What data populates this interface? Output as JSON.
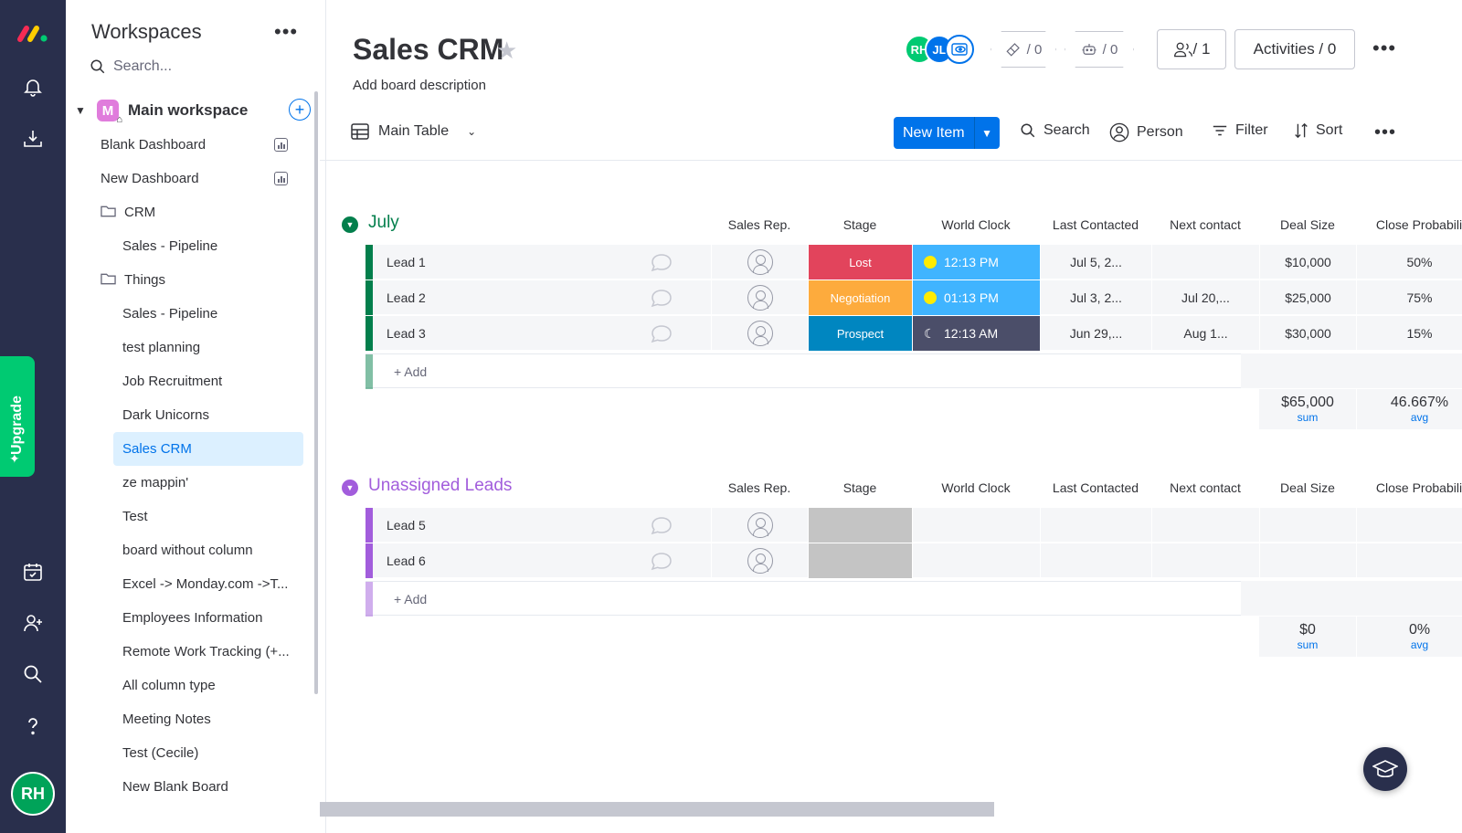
{
  "rail": {
    "upgrade_label": "Upgrade",
    "user_initials": "RH"
  },
  "sidebar": {
    "title": "Workspaces",
    "more": "•••",
    "search_placeholder": "Search...",
    "workspace": {
      "name": "Main workspace",
      "badge": "M"
    },
    "items": [
      {
        "label": "Blank Dashboard",
        "type": "dashboard"
      },
      {
        "label": "New Dashboard",
        "type": "dashboard"
      },
      {
        "label": "CRM",
        "type": "folder"
      },
      {
        "label": "Sales - Pipeline",
        "type": "board"
      },
      {
        "label": "Things",
        "type": "folder"
      },
      {
        "label": "Sales - Pipeline",
        "type": "board"
      },
      {
        "label": "test planning",
        "type": "board"
      },
      {
        "label": "Job Recruitment",
        "type": "board"
      },
      {
        "label": "Dark Unicorns",
        "type": "board"
      },
      {
        "label": "Sales CRM",
        "type": "board",
        "active": true
      },
      {
        "label": "ze mappin'",
        "type": "board"
      },
      {
        "label": "Test",
        "type": "board"
      },
      {
        "label": "board without column",
        "type": "board"
      },
      {
        "label": "Excel -> Monday.com ->T...",
        "type": "board"
      },
      {
        "label": "Employees Information",
        "type": "board"
      },
      {
        "label": "Remote Work Tracking (+...",
        "type": "board"
      },
      {
        "label": "All column type",
        "type": "board"
      },
      {
        "label": "Meeting Notes",
        "type": "board"
      },
      {
        "label": "Test (Cecile)",
        "type": "board"
      },
      {
        "label": "New Blank Board",
        "type": "board"
      }
    ]
  },
  "header": {
    "title": "Sales CRM",
    "description": "Add board description",
    "avatars": [
      "RH",
      "JL"
    ],
    "integrations_count": "/ 0",
    "automations_count": "/ 0",
    "members_count": "/ 1",
    "activities_label": "Activities / 0",
    "more": "•••"
  },
  "toolbar": {
    "view_label": "Main Table",
    "new_item_label": "New Item",
    "search_label": "Search",
    "person_label": "Person",
    "filter_label": "Filter",
    "sort_label": "Sort",
    "more": "•••"
  },
  "columns": [
    "Sales Rep.",
    "Stage",
    "World Clock",
    "Last Contacted",
    "Next contact",
    "Deal Size",
    "Close Probabili"
  ],
  "groups": [
    {
      "name": "July",
      "color": "#037f4c",
      "rows": [
        {
          "name": "Lead 1",
          "stage": "Lost",
          "stage_color": "#e2445c",
          "clock": "12:13 PM",
          "clock_bg": "#40b4ff",
          "night": false,
          "last_contacted": "Jul 5, 2...",
          "next_contact": "",
          "deal_size": "$10,000",
          "close_prob": "50%"
        },
        {
          "name": "Lead 2",
          "stage": "Negotiation",
          "stage_color": "#fdab3d",
          "clock": "01:13 PM",
          "clock_bg": "#40b4ff",
          "night": false,
          "last_contacted": "Jul 3, 2...",
          "next_contact": "Jul 20,...",
          "deal_size": "$25,000",
          "close_prob": "75%"
        },
        {
          "name": "Lead 3",
          "stage": "Prospect",
          "stage_color": "#0086c0",
          "clock": "12:13 AM",
          "clock_bg": "#4b4e69",
          "night": true,
          "last_contacted": "Jun 29,...",
          "next_contact": "Aug 1...",
          "deal_size": "$30,000",
          "close_prob": "15%"
        }
      ],
      "add_label": "+ Add",
      "deal_sum": "$65,000",
      "deal_sum_label": "sum",
      "prob_avg": "46.667%",
      "prob_avg_label": "avg"
    },
    {
      "name": "Unassigned Leads",
      "color": "#a25ddc",
      "rows": [
        {
          "name": "Lead 5",
          "stage": "",
          "stage_color": "#c4c4c4",
          "clock": "",
          "clock_bg": "",
          "night": false,
          "last_contacted": "",
          "next_contact": "",
          "deal_size": "",
          "close_prob": ""
        },
        {
          "name": "Lead 6",
          "stage": "",
          "stage_color": "#c4c4c4",
          "clock": "",
          "clock_bg": "",
          "night": false,
          "last_contacted": "",
          "next_contact": "",
          "deal_size": "",
          "close_prob": ""
        }
      ],
      "add_label": "+ Add",
      "deal_sum": "$0",
      "deal_sum_label": "sum",
      "prob_avg": "0%",
      "prob_avg_label": "avg"
    }
  ]
}
